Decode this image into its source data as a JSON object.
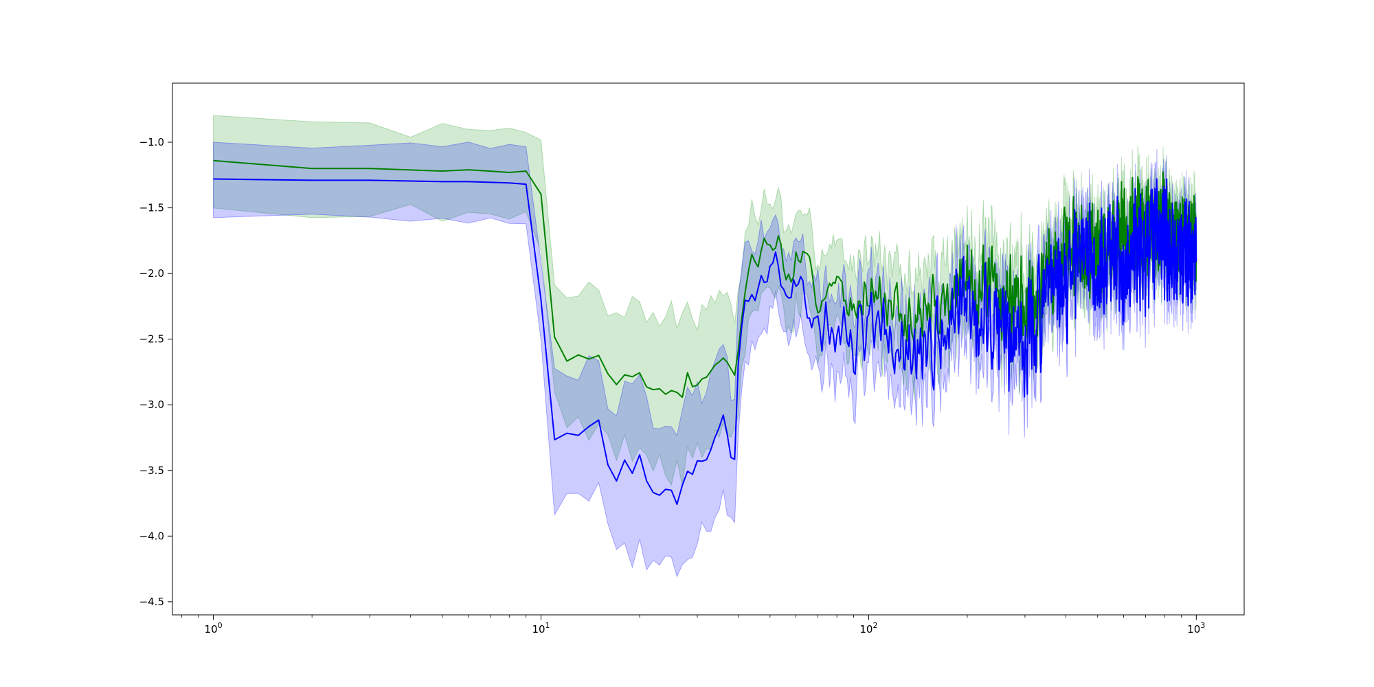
{
  "chart_data": {
    "type": "line",
    "title": "",
    "xlabel": "",
    "ylabel": "",
    "x_scale": "log",
    "xlim": [
      0.75,
      1400
    ],
    "ylim": [
      -4.6,
      -0.55
    ],
    "grid": false,
    "legend": "none",
    "x_ticks": [
      {
        "value": 1,
        "base": "10",
        "exp": "0"
      },
      {
        "value": 10,
        "base": "10",
        "exp": "1"
      },
      {
        "value": 100,
        "base": "10",
        "exp": "2"
      },
      {
        "value": 1000,
        "base": "10",
        "exp": "3"
      }
    ],
    "y_ticks": [
      {
        "value": -1.0,
        "label": "−1.0"
      },
      {
        "value": -1.5,
        "label": "−1.5"
      },
      {
        "value": -2.0,
        "label": "−2.0"
      },
      {
        "value": -2.5,
        "label": "−2.5"
      },
      {
        "value": -3.0,
        "label": "−3.0"
      },
      {
        "value": -3.5,
        "label": "−3.5"
      },
      {
        "value": -4.0,
        "label": "−4.0"
      },
      {
        "value": -4.5,
        "label": "−4.5"
      }
    ],
    "series": [
      {
        "color": "#008000",
        "band_color": "#2ca02c",
        "band_opacity": 0.22,
        "mean_anchors": [
          [
            1,
            -1.14
          ],
          [
            2,
            -1.2
          ],
          [
            3,
            -1.2
          ],
          [
            5,
            -1.22
          ],
          [
            6,
            -1.21
          ],
          [
            8,
            -1.23
          ],
          [
            9,
            -1.22
          ],
          [
            10,
            -1.4
          ],
          [
            11,
            -2.48
          ],
          [
            12,
            -2.65
          ],
          [
            13,
            -2.62
          ],
          [
            14,
            -2.65
          ],
          [
            15,
            -2.6
          ],
          [
            16,
            -2.75
          ],
          [
            17,
            -2.83
          ],
          [
            18,
            -2.77
          ],
          [
            19,
            -2.8
          ],
          [
            20,
            -2.75
          ],
          [
            21,
            -2.85
          ],
          [
            22,
            -2.88
          ],
          [
            23,
            -2.87
          ],
          [
            24,
            -2.93
          ],
          [
            25,
            -2.9
          ],
          [
            26,
            -2.9
          ],
          [
            27,
            -2.93
          ],
          [
            28,
            -2.75
          ],
          [
            29,
            -2.85
          ],
          [
            30,
            -2.82
          ],
          [
            32,
            -2.78
          ],
          [
            34,
            -2.7
          ],
          [
            36,
            -2.65
          ],
          [
            38,
            -2.73
          ],
          [
            39,
            -2.75
          ],
          [
            40,
            -2.6
          ],
          [
            42,
            -2.1
          ],
          [
            44,
            -1.88
          ],
          [
            46,
            -1.92
          ],
          [
            48,
            -1.8
          ],
          [
            50,
            -1.78
          ],
          [
            52,
            -1.75
          ],
          [
            54,
            -1.78
          ],
          [
            56,
            -2.1
          ],
          [
            60,
            -1.9
          ],
          [
            65,
            -2.0
          ],
          [
            70,
            -2.15
          ],
          [
            80,
            -2.1
          ],
          [
            90,
            -2.3
          ],
          [
            100,
            -2.05
          ],
          [
            110,
            -2.2
          ],
          [
            130,
            -2.4
          ],
          [
            150,
            -2.3
          ],
          [
            170,
            -2.2
          ],
          [
            200,
            -2.05
          ],
          [
            250,
            -2.15
          ],
          [
            300,
            -2.25
          ],
          [
            350,
            -2.0
          ],
          [
            400,
            -1.85
          ],
          [
            450,
            -1.75
          ],
          [
            500,
            -1.8
          ],
          [
            600,
            -1.7
          ],
          [
            700,
            -1.65
          ],
          [
            800,
            -1.6
          ],
          [
            900,
            -1.7
          ],
          [
            1000,
            -1.75
          ]
        ],
        "band_anchors": [
          [
            1,
            0.31
          ],
          [
            2,
            0.32
          ],
          [
            5,
            0.32
          ],
          [
            9,
            0.32
          ],
          [
            10,
            0.38
          ],
          [
            11,
            0.42
          ],
          [
            13,
            0.5
          ],
          [
            16,
            0.55
          ],
          [
            20,
            0.55
          ],
          [
            25,
            0.6
          ],
          [
            30,
            0.55
          ],
          [
            36,
            0.5
          ],
          [
            38,
            0.45
          ],
          [
            40,
            0.45
          ],
          [
            44,
            0.4
          ],
          [
            50,
            0.35
          ],
          [
            60,
            0.35
          ],
          [
            80,
            0.35
          ],
          [
            100,
            0.35
          ],
          [
            150,
            0.35
          ],
          [
            200,
            0.33
          ],
          [
            300,
            0.3
          ],
          [
            400,
            0.25
          ],
          [
            600,
            0.22
          ],
          [
            800,
            0.2
          ],
          [
            1000,
            0.2
          ]
        ],
        "noise_anchors": [
          [
            1,
            0
          ],
          [
            9,
            0
          ],
          [
            10,
            0.02
          ],
          [
            12,
            0.03
          ],
          [
            40,
            0.05
          ],
          [
            45,
            0.12
          ],
          [
            80,
            0.2
          ],
          [
            150,
            0.3
          ],
          [
            250,
            0.38
          ],
          [
            400,
            0.45
          ],
          [
            600,
            0.45
          ],
          [
            1000,
            0.4
          ]
        ],
        "noise_seed": 7
      },
      {
        "color": "#0000ff",
        "band_color": "#0000ff",
        "band_opacity": 0.2,
        "mean_anchors": [
          [
            1,
            -1.28
          ],
          [
            2,
            -1.29
          ],
          [
            3,
            -1.29
          ],
          [
            5,
            -1.3
          ],
          [
            6,
            -1.3
          ],
          [
            8,
            -1.31
          ],
          [
            9,
            -1.32
          ],
          [
            10,
            -2.2
          ],
          [
            11,
            -3.26
          ],
          [
            12,
            -3.2
          ],
          [
            13,
            -3.22
          ],
          [
            14,
            -3.18
          ],
          [
            15,
            -3.15
          ],
          [
            16,
            -3.5
          ],
          [
            17,
            -3.62
          ],
          [
            18,
            -3.42
          ],
          [
            19,
            -3.52
          ],
          [
            20,
            -3.4
          ],
          [
            21,
            -3.6
          ],
          [
            22,
            -3.7
          ],
          [
            23,
            -3.73
          ],
          [
            24,
            -3.65
          ],
          [
            25,
            -3.62
          ],
          [
            26,
            -3.75
          ],
          [
            28,
            -3.5
          ],
          [
            29,
            -3.55
          ],
          [
            30,
            -3.42
          ],
          [
            32,
            -3.4
          ],
          [
            34,
            -3.27
          ],
          [
            36,
            -3.07
          ],
          [
            37,
            -3.25
          ],
          [
            38,
            -3.45
          ],
          [
            39,
            -3.47
          ],
          [
            40,
            -2.75
          ],
          [
            42,
            -2.18
          ],
          [
            44,
            -2.05
          ],
          [
            46,
            -2.1
          ],
          [
            48,
            -1.95
          ],
          [
            50,
            -1.92
          ],
          [
            52,
            -1.9
          ],
          [
            54,
            -1.95
          ],
          [
            56,
            -2.35
          ],
          [
            60,
            -2.1
          ],
          [
            65,
            -2.25
          ],
          [
            70,
            -2.45
          ],
          [
            80,
            -2.4
          ],
          [
            90,
            -2.55
          ],
          [
            100,
            -2.35
          ],
          [
            110,
            -2.5
          ],
          [
            130,
            -2.65
          ],
          [
            150,
            -2.6
          ],
          [
            170,
            -2.45
          ],
          [
            200,
            -2.25
          ],
          [
            250,
            -2.4
          ],
          [
            300,
            -2.5
          ],
          [
            350,
            -2.2
          ],
          [
            400,
            -2.05
          ],
          [
            450,
            -1.9
          ],
          [
            500,
            -1.95
          ],
          [
            600,
            -1.85
          ],
          [
            700,
            -1.8
          ],
          [
            800,
            -1.75
          ],
          [
            900,
            -1.85
          ],
          [
            1000,
            -1.95
          ]
        ],
        "band_anchors": [
          [
            1,
            0.3
          ],
          [
            2,
            0.3
          ],
          [
            5,
            0.3
          ],
          [
            9,
            0.3
          ],
          [
            10,
            0.35
          ],
          [
            11,
            0.5
          ],
          [
            13,
            0.55
          ],
          [
            16,
            0.55
          ],
          [
            20,
            0.65
          ],
          [
            25,
            0.6
          ],
          [
            30,
            0.55
          ],
          [
            36,
            0.55
          ],
          [
            38,
            0.5
          ],
          [
            40,
            0.5
          ],
          [
            44,
            0.4
          ],
          [
            50,
            0.35
          ],
          [
            60,
            0.33
          ],
          [
            80,
            0.33
          ],
          [
            100,
            0.33
          ],
          [
            150,
            0.32
          ],
          [
            200,
            0.3
          ],
          [
            300,
            0.28
          ],
          [
            400,
            0.25
          ],
          [
            600,
            0.22
          ],
          [
            800,
            0.2
          ],
          [
            1000,
            0.2
          ]
        ],
        "noise_anchors": [
          [
            1,
            0
          ],
          [
            9,
            0
          ],
          [
            10,
            0.02
          ],
          [
            12,
            0.04
          ],
          [
            40,
            0.06
          ],
          [
            45,
            0.15
          ],
          [
            80,
            0.28
          ],
          [
            150,
            0.4
          ],
          [
            250,
            0.5
          ],
          [
            400,
            0.55
          ],
          [
            600,
            0.55
          ],
          [
            1000,
            0.5
          ]
        ],
        "noise_seed": 13
      }
    ]
  }
}
